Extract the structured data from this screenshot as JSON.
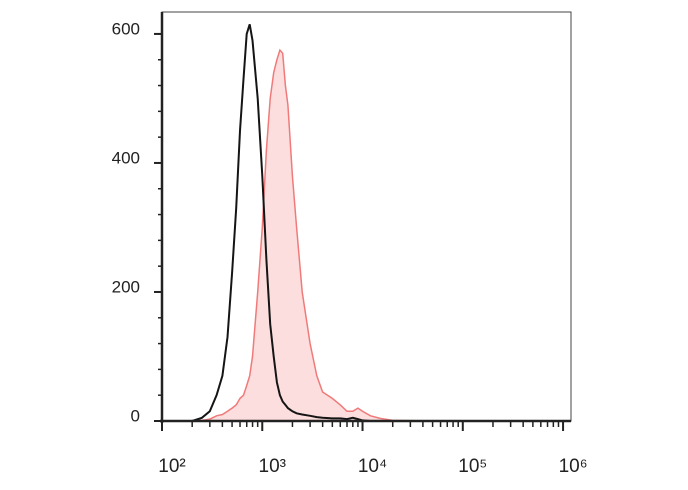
{
  "chart_data": {
    "type": "histogram-overlay",
    "x": [
      100,
      200,
      250,
      300,
      350,
      400,
      450,
      500,
      550,
      600,
      650,
      700,
      750,
      800,
      900,
      1000,
      1100,
      1200,
      1300,
      1400,
      1500,
      1600,
      1700,
      1800,
      2000,
      2200,
      2500,
      3000,
      3500,
      4000,
      5000,
      6000,
      7000,
      8000,
      9000,
      10000,
      12000,
      15000,
      20000,
      50000,
      100000,
      1000000,
      1200000
    ],
    "series": [
      {
        "color": "#f07a7a",
        "fill_color": "#fcdede",
        "filled": true,
        "values": [
          0,
          0,
          1,
          3,
          8,
          10,
          15,
          20,
          25,
          35,
          40,
          55,
          70,
          100,
          200,
          300,
          420,
          500,
          540,
          560,
          575,
          570,
          520,
          490,
          380,
          300,
          200,
          120,
          70,
          45,
          35,
          25,
          15,
          15,
          20,
          15,
          8,
          4,
          1,
          0,
          0,
          0,
          0
        ]
      },
      {
        "color": "#151515",
        "filled": false,
        "values": [
          0,
          0,
          5,
          15,
          40,
          70,
          130,
          230,
          330,
          450,
          530,
          600,
          615,
          590,
          500,
          380,
          250,
          150,
          100,
          60,
          40,
          30,
          25,
          20,
          15,
          12,
          10,
          8,
          6,
          5,
          4,
          4,
          3,
          5,
          3,
          1,
          0,
          0,
          0,
          0,
          0,
          0,
          0
        ]
      }
    ],
    "xscale": "log",
    "xlim": [
      100,
      1200000
    ],
    "xticks": [
      {
        "value": 100,
        "label": "10²"
      },
      {
        "value": 1000,
        "label": "10³"
      },
      {
        "value": 10000,
        "label": "10⁴"
      },
      {
        "value": 100000,
        "label": "10⁵"
      },
      {
        "value": 1000000,
        "label": "10⁶"
      }
    ],
    "ylim": [
      0,
      634
    ],
    "yticks": [
      0,
      200,
      400,
      600
    ],
    "minor_ticks": true
  }
}
